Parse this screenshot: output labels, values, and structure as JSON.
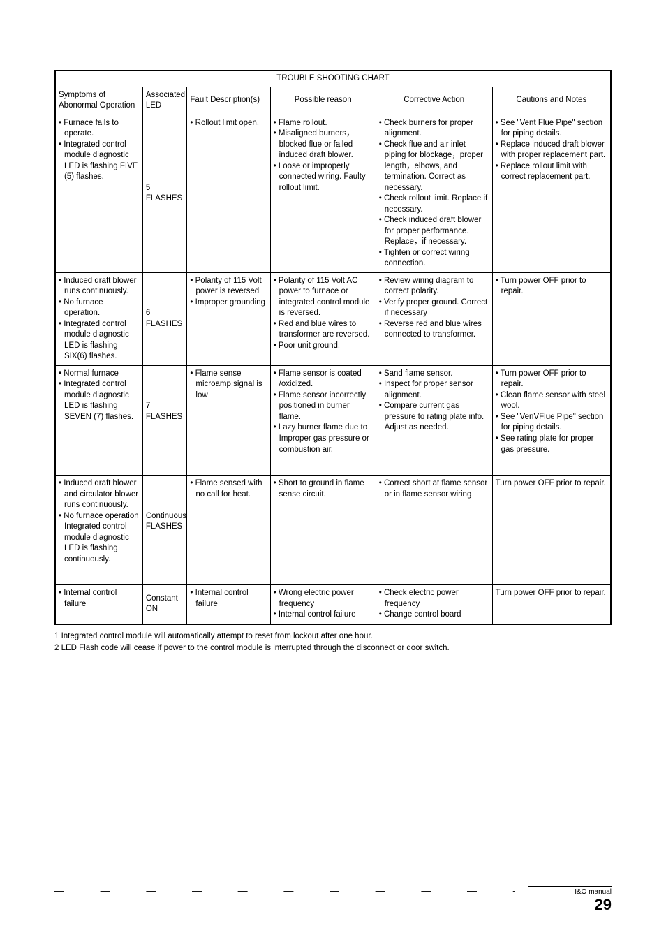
{
  "table": {
    "title": "TROUBLE SHOOTING CHART",
    "headers": {
      "c1": "Symptoms of Abonormal Operation",
      "c2": "Associated LED",
      "c3": "Fault Description(s)",
      "c4": "Possible reason",
      "c5": "Corrective Action",
      "c6": "Cautions and Notes"
    },
    "rows": [
      {
        "c1": [
          "Furnace fails to operate.",
          "Integrated control module diagnostic LED is flashing FIVE (5) flashes."
        ],
        "c2": "5 FLASHES",
        "c3": [
          "Rollout limit open."
        ],
        "c4": [
          "Flame rollout.",
          "Misaligned burners，blocked flue or failed induced draft blower.",
          "Loose or improperly connected wiring. Faulty rollout limit."
        ],
        "c5": [
          "Check burners for proper alignment.",
          "Check flue and air inlet piping for blockage，proper length，elbows, and termination. Correct as necessary.",
          "Check rollout limit. Replace if necessary.",
          "Check induced draft blower for proper performance. Replace，if necessary.",
          "Tighten or correct wiring connection."
        ],
        "c6": [
          "See \"Vent Flue Pipe\" section for piping details.",
          "Replace induced draft blower with proper replacement part.",
          "Replace rollout limit with correct replacement part."
        ]
      },
      {
        "c1": [
          "Induced draft blower runs continuously.",
          "No furnace operation.",
          "Integrated control module diagnostic LED is flashing SIX(6) flashes."
        ],
        "c2": "6 FLASHES",
        "c3": [
          "Polarity of 115 Volt power is reversed",
          "Improper grounding"
        ],
        "c4": [
          "Polarity of 115 Volt AC power to furnace or integrated control module is reversed.",
          "Red and blue wires to transformer are reversed.",
          "Poor unit ground."
        ],
        "c5": [
          "Review wiring diagram to correct polarity.",
          "Verify proper ground. Correct if necessary",
          "Reverse red and blue wires connected to transformer."
        ],
        "c6": [
          "Turn power OFF prior to repair."
        ]
      },
      {
        "c1": [
          "Normal furnace",
          "Integrated control module diagnostic LED is flashing SEVEN (7) flashes."
        ],
        "c2": "7 FLASHES",
        "c3": [
          "Flame sense microamp signal is low"
        ],
        "c4": [
          "Flame sensor is coated /oxidized.",
          "Flame sensor incorrectly positioned in burner flame.",
          "Lazy burner flame due to Improper gas pressure or combustion air."
        ],
        "c5": [
          "Sand flame sensor.",
          "Inspect for proper sensor alignment.",
          "Compare current gas pressure to rating plate info. Adjust as needed."
        ],
        "c6": [
          "Turn power OFF prior to repair.",
          "Clean flame sensor with steel wool.",
          "See \"VenVFlue Pipe\" section for piping details.",
          "See rating plate for proper gas pressure."
        ]
      },
      {
        "c1": [
          "Induced draft blower and circulator blower runs continuously.",
          "No furnace operation Integrated control module diagnostic LED is flashing continuously."
        ],
        "c2": "Continuous FLASHES",
        "c3": [
          "Flame sensed with no call for heat."
        ],
        "c4": [
          "Short to ground in flame sense circuit."
        ],
        "c5": [
          "Correct short at flame sensor or in flame sensor wiring"
        ],
        "c6_plain": "Turn power OFF prior to repair."
      },
      {
        "c1": [
          "Internal control failure"
        ],
        "c2": "Constant ON",
        "c3": [
          "Internal control failure"
        ],
        "c4": [
          "Wrong electric power frequency",
          "Internal control failure"
        ],
        "c5": [
          "Check electric power frequency",
          "Change control board"
        ],
        "c6_plain": "Turn power OFF prior to repair."
      }
    ]
  },
  "footnotes": {
    "n1": "1 Integrated control module will automatically attempt to reset from lockout after one hour.",
    "n2": "2 LED Flash code will cease if power to the control module is interrupted through the disconnect or door switch."
  },
  "footer": {
    "label": "I&O manual",
    "page": "29"
  }
}
